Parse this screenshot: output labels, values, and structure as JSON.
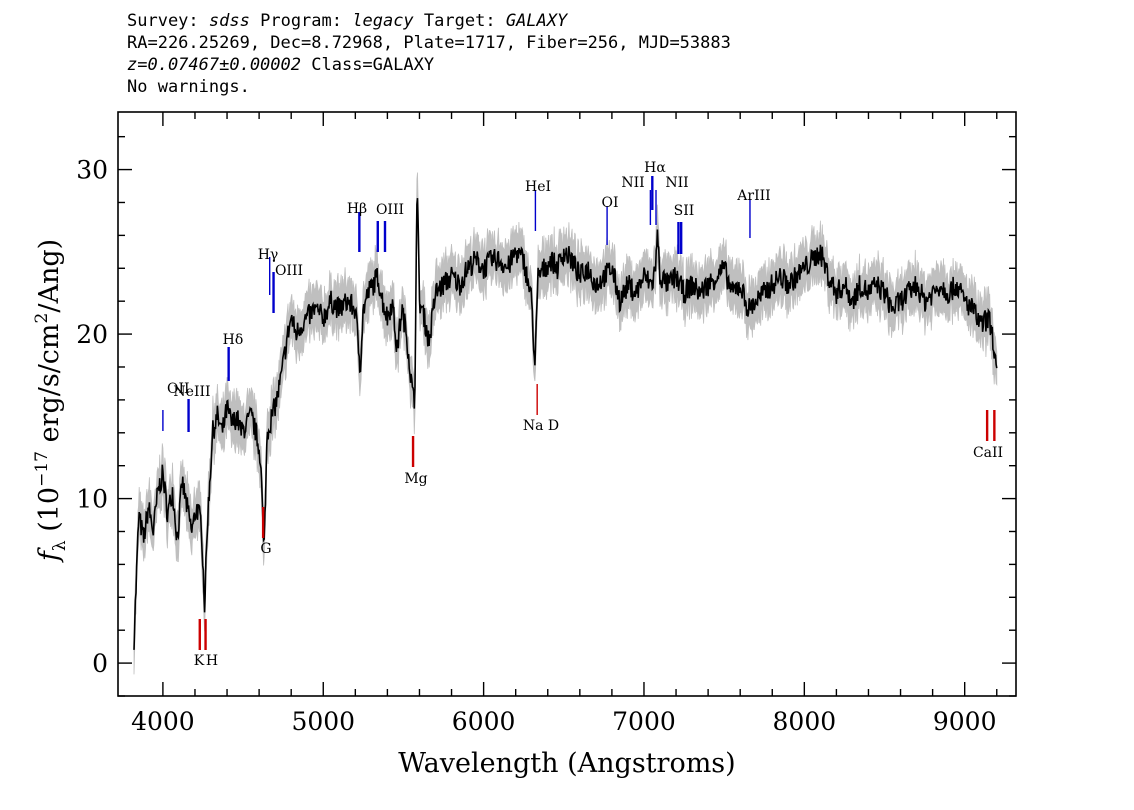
{
  "header": {
    "line1": {
      "survey_label": "Survey:",
      "survey": "sdss",
      "program_label": "Program:",
      "program": "legacy",
      "target_label": "Target:",
      "target": "GALAXY"
    },
    "line2": "RA=226.25269, Dec=8.72968, Plate=1717, Fiber=256, MJD=53883",
    "line3": {
      "z": "z=0.07467±0.00002",
      "class": "Class=GALAXY"
    },
    "line4": "No warnings."
  },
  "chart_data": {
    "type": "line",
    "xlabel": "Wavelength (Angstroms)",
    "ylabel": {
      "f": "f",
      "sub": "λ",
      "pre": " (10",
      "sup": "−17",
      "post": " erg/s/cm",
      "sup2": "2",
      "post2": "/Ang)"
    },
    "xlim": [
      3720,
      9320
    ],
    "ylim": [
      -2,
      33.5
    ],
    "x_ticks": [
      4000,
      5000,
      6000,
      7000,
      8000,
      9000
    ],
    "y_ticks": [
      0,
      10,
      20,
      30
    ],
    "colors": {
      "flux": "#000000",
      "error_band": "#bfbfbf",
      "emission": "#0000cc",
      "absorption": "#cc0000"
    },
    "series": [
      {
        "x": [
          3820,
          3850,
          3880,
          3910,
          3940,
          3970,
          4000,
          4030,
          4060,
          4090,
          4120,
          4150,
          4180,
          4210,
          4240,
          4260,
          4280,
          4310,
          4340,
          4370,
          4400,
          4430,
          4460,
          4490,
          4520,
          4550,
          4580,
          4610,
          4630,
          4650,
          4680,
          4710,
          4740,
          4770,
          4800,
          4830,
          4860,
          4900,
          4950,
          5000,
          5050,
          5100,
          5150,
          5200,
          5230,
          5250,
          5280,
          5310,
          5340,
          5370,
          5400,
          5430,
          5460,
          5490,
          5520,
          5550,
          5570,
          5585,
          5600,
          5630,
          5660,
          5700,
          5750,
          5800,
          5850,
          5900,
          5950,
          6000,
          6050,
          6100,
          6150,
          6200,
          6250,
          6280,
          6300,
          6320,
          6340,
          6380,
          6420,
          6460,
          6500,
          6550,
          6600,
          6650,
          6700,
          6750,
          6800,
          6850,
          6900,
          6950,
          7000,
          7050,
          7070,
          7085,
          7100,
          7150,
          7200,
          7250,
          7300,
          7350,
          7400,
          7450,
          7500,
          7550,
          7600,
          7650,
          7700,
          7750,
          7800,
          7850,
          7900,
          7950,
          8000,
          8050,
          8100,
          8150,
          8200,
          8250,
          8300,
          8350,
          8400,
          8450,
          8500,
          8550,
          8600,
          8650,
          8700,
          8750,
          8800,
          8850,
          8900,
          8950,
          9000,
          9050,
          9100,
          9150,
          9180,
          9200
        ],
        "y": [
          1.5,
          9.0,
          7.5,
          9.5,
          8.0,
          10.5,
          11.5,
          9.0,
          10.5,
          7.5,
          11.0,
          9.5,
          8.0,
          9.5,
          8.5,
          3.5,
          9.0,
          14.0,
          15.0,
          14.0,
          15.5,
          14.5,
          15.0,
          14.0,
          14.5,
          15.0,
          14.0,
          12.5,
          6.5,
          14.0,
          15.0,
          16.0,
          17.5,
          19.5,
          21.0,
          20.0,
          20.5,
          21.0,
          21.5,
          21.0,
          22.0,
          21.5,
          22.0,
          21.5,
          18.0,
          21.5,
          22.5,
          23.0,
          23.5,
          22.0,
          21.0,
          22.0,
          19.0,
          21.5,
          20.0,
          17.0,
          15.5,
          29.5,
          22.0,
          21.0,
          19.5,
          22.5,
          23.0,
          23.5,
          23.0,
          24.0,
          24.5,
          24.0,
          24.5,
          24.5,
          24.0,
          25.0,
          24.5,
          23.0,
          22.0,
          18.0,
          23.5,
          24.0,
          24.5,
          24.0,
          25.0,
          24.5,
          23.5,
          24.0,
          23.0,
          23.5,
          24.0,
          22.0,
          23.0,
          22.5,
          23.5,
          23.0,
          24.0,
          26.0,
          23.5,
          23.0,
          23.5,
          22.5,
          23.0,
          22.5,
          23.0,
          23.5,
          24.0,
          22.5,
          23.0,
          21.5,
          22.0,
          22.5,
          23.0,
          23.5,
          23.0,
          23.5,
          24.0,
          24.5,
          25.0,
          23.5,
          22.5,
          23.0,
          22.0,
          23.0,
          22.5,
          23.0,
          22.5,
          21.5,
          22.0,
          22.5,
          23.0,
          22.0,
          22.5,
          23.0,
          22.5,
          23.0,
          22.0,
          21.5,
          20.5,
          21.0,
          19.5,
          17.5
        ]
      }
    ],
    "emission_lines": [
      {
        "label": "OII",
        "x": 4000
      },
      {
        "label": "NeIII",
        "x": 4160
      },
      {
        "label": "Hδ",
        "x": 4410
      },
      {
        "label": "Hγ",
        "x": 4666
      },
      {
        "label": "OIII",
        "x": 4690
      },
      {
        "label": "Hβ",
        "x": 5225
      },
      {
        "label": "OIII",
        "x": 5340
      },
      {
        "label": "",
        "x": 5385
      },
      {
        "label": "HeI",
        "x": 6323
      },
      {
        "label": "OI",
        "x": 6770
      },
      {
        "label": "NII",
        "x": 7040
      },
      {
        "label": "Hα",
        "x": 7052
      },
      {
        "label": "NII",
        "x": 7075
      },
      {
        "label": "SII",
        "x": 7215
      },
      {
        "label": "",
        "x": 7232
      },
      {
        "label": "ArIII",
        "x": 7661
      }
    ],
    "absorption_lines": [
      {
        "label": "K",
        "x": 4230
      },
      {
        "label": "H",
        "x": 4266
      },
      {
        "label": "G",
        "x": 4625
      },
      {
        "label": "Mg",
        "x": 5560
      },
      {
        "label": "Na D",
        "x": 6334
      },
      {
        "label": "",
        "x": 9140
      },
      {
        "label": "CaII",
        "x": 9185
      }
    ]
  }
}
